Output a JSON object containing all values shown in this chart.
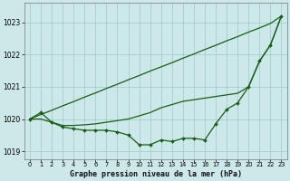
{
  "xlabel": "Graphe pression niveau de la mer (hPa)",
  "background_color": "#cce8e8",
  "grid_color": "#aacccc",
  "line_color": "#1a5c1a",
  "hours": [
    0,
    1,
    2,
    3,
    4,
    5,
    6,
    7,
    8,
    9,
    10,
    11,
    12,
    13,
    14,
    15,
    16,
    17,
    18,
    19,
    20,
    21,
    22,
    23
  ],
  "top_y": [
    1020.0,
    1020.14,
    1020.27,
    1020.41,
    1020.54,
    1020.68,
    1020.81,
    1020.95,
    1021.08,
    1021.22,
    1021.35,
    1021.49,
    1021.62,
    1021.75,
    1021.89,
    1022.02,
    1022.16,
    1022.29,
    1022.43,
    1022.56,
    1022.7,
    1022.83,
    1022.97,
    1023.2
  ],
  "mid_y": [
    1020.0,
    1020.0,
    1019.9,
    1019.8,
    1019.8,
    1019.82,
    1019.85,
    1019.9,
    1019.95,
    1020.0,
    1020.1,
    1020.2,
    1020.35,
    1020.45,
    1020.55,
    1020.6,
    1020.65,
    1020.7,
    1020.75,
    1020.8,
    1021.0,
    1021.8,
    1022.3,
    1023.2
  ],
  "bot_y": [
    1020.0,
    1020.2,
    1019.9,
    1019.75,
    1019.7,
    1019.65,
    1019.65,
    1019.65,
    1019.6,
    1019.5,
    1019.2,
    1019.2,
    1019.35,
    1019.3,
    1019.4,
    1019.4,
    1019.35,
    1019.85,
    1020.3,
    1020.5,
    1021.0,
    1021.8,
    1022.3,
    1023.2
  ],
  "ylim": [
    1018.75,
    1023.6
  ],
  "yticks": [
    1019,
    1020,
    1021,
    1022,
    1023
  ],
  "xticks": [
    0,
    1,
    2,
    3,
    4,
    5,
    6,
    7,
    8,
    9,
    10,
    11,
    12,
    13,
    14,
    15,
    16,
    17,
    18,
    19,
    20,
    21,
    22,
    23
  ]
}
